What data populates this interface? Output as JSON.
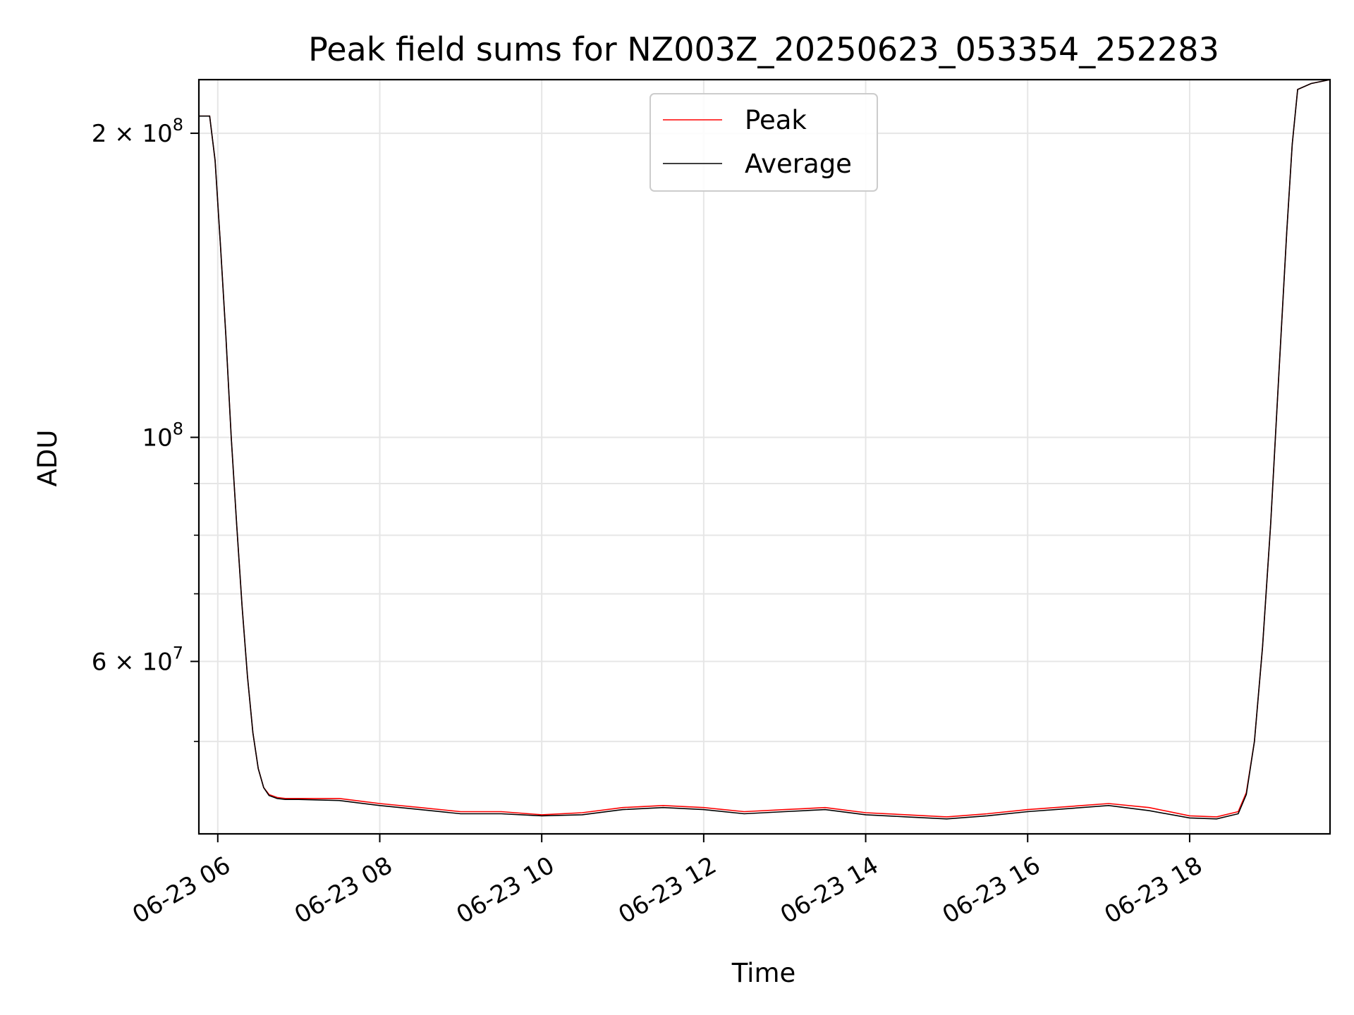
{
  "chart_data": {
    "type": "line",
    "title": "Peak field sums for NZ003Z_20250623_053354_252283",
    "xlabel": "Time",
    "ylabel": "ADU",
    "yscale": "log",
    "grid": true,
    "legend_position": "top-center",
    "xlim": [
      "2025-06-23T05:46",
      "2025-06-23T19:44"
    ],
    "ylim": [
      40500000,
      226000000
    ],
    "x_ticks": [
      {
        "value": "2025-06-23T06:00",
        "label": "06-23 06"
      },
      {
        "value": "2025-06-23T08:00",
        "label": "06-23 08"
      },
      {
        "value": "2025-06-23T10:00",
        "label": "06-23 10"
      },
      {
        "value": "2025-06-23T12:00",
        "label": "06-23 12"
      },
      {
        "value": "2025-06-23T14:00",
        "label": "06-23 14"
      },
      {
        "value": "2025-06-23T16:00",
        "label": "06-23 16"
      },
      {
        "value": "2025-06-23T18:00",
        "label": "06-23 18"
      }
    ],
    "y_major_ticks": [
      {
        "value": 200000000,
        "mantissa": "2",
        "exponent": "8"
      },
      {
        "value": 100000000,
        "mantissa": "",
        "exponent": "8"
      },
      {
        "value": 60000000,
        "mantissa": "6",
        "exponent": "7"
      }
    ],
    "y_minor_ticks": [
      50000000,
      70000000,
      80000000,
      90000000
    ],
    "series": [
      {
        "name": "Peak",
        "color": "#ff0000",
        "x": [
          "2025-06-23T05:46",
          "2025-06-23T05:54",
          "2025-06-23T05:58",
          "2025-06-23T06:02",
          "2025-06-23T06:06",
          "2025-06-23T06:10",
          "2025-06-23T06:14",
          "2025-06-23T06:18",
          "2025-06-23T06:22",
          "2025-06-23T06:26",
          "2025-06-23T06:30",
          "2025-06-23T06:34",
          "2025-06-23T06:38",
          "2025-06-23T06:44",
          "2025-06-23T06:50",
          "2025-06-23T07:00",
          "2025-06-23T07:30",
          "2025-06-23T08:00",
          "2025-06-23T08:30",
          "2025-06-23T09:00",
          "2025-06-23T09:30",
          "2025-06-23T10:00",
          "2025-06-23T10:30",
          "2025-06-23T11:00",
          "2025-06-23T11:30",
          "2025-06-23T12:00",
          "2025-06-23T12:30",
          "2025-06-23T13:00",
          "2025-06-23T13:30",
          "2025-06-23T14:00",
          "2025-06-23T14:30",
          "2025-06-23T15:00",
          "2025-06-23T15:30",
          "2025-06-23T16:00",
          "2025-06-23T16:30",
          "2025-06-23T17:00",
          "2025-06-23T17:30",
          "2025-06-23T18:00",
          "2025-06-23T18:20",
          "2025-06-23T18:36",
          "2025-06-23T18:42",
          "2025-06-23T18:48",
          "2025-06-23T18:54",
          "2025-06-23T19:00",
          "2025-06-23T19:06",
          "2025-06-23T19:12",
          "2025-06-23T19:16",
          "2025-06-23T19:20",
          "2025-06-23T19:30",
          "2025-06-23T19:44"
        ],
        "values": [
          208000000,
          208000000,
          188000000,
          155000000,
          126000000,
          100000000,
          82000000,
          68000000,
          58000000,
          51000000,
          47000000,
          45000000,
          44300000,
          44000000,
          43900000,
          43900000,
          43900000,
          43400000,
          43000000,
          42600000,
          42600000,
          42300000,
          42500000,
          43000000,
          43200000,
          43000000,
          42600000,
          42800000,
          43000000,
          42500000,
          42300000,
          42100000,
          42400000,
          42800000,
          43100000,
          43400000,
          43000000,
          42200000,
          42100000,
          42600000,
          44500000,
          50000000,
          62000000,
          82000000,
          115000000,
          160000000,
          195000000,
          221000000,
          224000000,
          226000000
        ]
      },
      {
        "name": "Average",
        "color": "#000000",
        "x": [
          "2025-06-23T05:46",
          "2025-06-23T05:54",
          "2025-06-23T05:58",
          "2025-06-23T06:02",
          "2025-06-23T06:06",
          "2025-06-23T06:10",
          "2025-06-23T06:14",
          "2025-06-23T06:18",
          "2025-06-23T06:22",
          "2025-06-23T06:26",
          "2025-06-23T06:30",
          "2025-06-23T06:34",
          "2025-06-23T06:38",
          "2025-06-23T06:44",
          "2025-06-23T06:50",
          "2025-06-23T07:00",
          "2025-06-23T07:30",
          "2025-06-23T08:00",
          "2025-06-23T08:30",
          "2025-06-23T09:00",
          "2025-06-23T09:30",
          "2025-06-23T10:00",
          "2025-06-23T10:30",
          "2025-06-23T11:00",
          "2025-06-23T11:30",
          "2025-06-23T12:00",
          "2025-06-23T12:30",
          "2025-06-23T13:00",
          "2025-06-23T13:30",
          "2025-06-23T14:00",
          "2025-06-23T14:30",
          "2025-06-23T15:00",
          "2025-06-23T15:30",
          "2025-06-23T16:00",
          "2025-06-23T16:30",
          "2025-06-23T17:00",
          "2025-06-23T17:30",
          "2025-06-23T18:00",
          "2025-06-23T18:20",
          "2025-06-23T18:36",
          "2025-06-23T18:42",
          "2025-06-23T18:48",
          "2025-06-23T18:54",
          "2025-06-23T19:00",
          "2025-06-23T19:06",
          "2025-06-23T19:12",
          "2025-06-23T19:16",
          "2025-06-23T19:20",
          "2025-06-23T19:30",
          "2025-06-23T19:44"
        ],
        "values": [
          208000000,
          208000000,
          188000000,
          155000000,
          126000000,
          100000000,
          82000000,
          68000000,
          58000000,
          51000000,
          47000000,
          45000000,
          44200000,
          43900000,
          43800000,
          43800000,
          43700000,
          43200000,
          42800000,
          42400000,
          42400000,
          42200000,
          42300000,
          42800000,
          43000000,
          42800000,
          42400000,
          42600000,
          42800000,
          42300000,
          42100000,
          41900000,
          42200000,
          42600000,
          42900000,
          43200000,
          42700000,
          42000000,
          41900000,
          42400000,
          44300000,
          50000000,
          62000000,
          82000000,
          115000000,
          160000000,
          195000000,
          221000000,
          224000000,
          226000000
        ]
      }
    ]
  }
}
